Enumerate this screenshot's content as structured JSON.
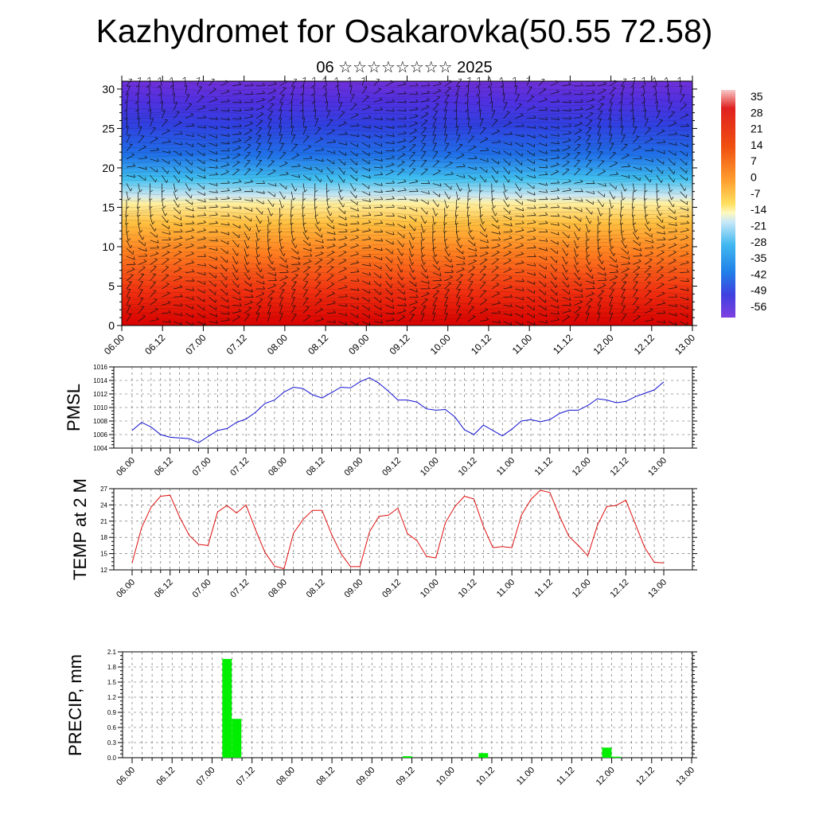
{
  "header": {
    "title": "Kazhydromet for Osakarovka(50.55 72.58)",
    "subtitle": "06 ☆☆☆☆☆☆☆☆ 2025"
  },
  "chart_data": [
    {
      "type": "heatmap",
      "title": "",
      "xlabel": "",
      "ylabel": "",
      "x_ticks": [
        "06.00",
        "06.12",
        "07.00",
        "07.12",
        "08.00",
        "08.12",
        "09.00",
        "09.12",
        "10.00",
        "10.12",
        "11.00",
        "11.12",
        "12.00",
        "12.12",
        "13.00"
      ],
      "y_ticks": [
        0,
        5,
        10,
        15,
        20,
        25,
        30
      ],
      "ylim": [
        0,
        31
      ],
      "colorbar_labels": [
        "35",
        "28",
        "21",
        "14",
        "7",
        "0",
        "-7",
        "-14",
        "-21",
        "-28",
        "-35",
        "-42",
        "-49",
        "-56"
      ],
      "overlay": "wind barbs / vector field",
      "colors": {
        "warm": "#e0141a",
        "mid": "#ffe060",
        "cold": "#6030e0"
      }
    },
    {
      "type": "line",
      "ylabel": "PMSL",
      "ylim": [
        1004,
        1016
      ],
      "y_ticks": [
        "1004",
        "1006",
        "1008",
        "1010",
        "1012",
        "1014",
        "1016"
      ],
      "x_ticks": [
        "06.00",
        "06.12",
        "07.00",
        "07.12",
        "08.00",
        "08.12",
        "09.00",
        "09.12",
        "10.00",
        "10.12",
        "11.00",
        "11.12",
        "12.00",
        "12.12",
        "13.00"
      ],
      "series": [
        {
          "color": "#1010d0",
          "values": [
            1006.6,
            1007.8,
            1007.1,
            1006.0,
            1005.6,
            1005.5,
            1005.4,
            1004.8,
            1005.7,
            1006.6,
            1006.9,
            1007.8,
            1008.3,
            1009.3,
            1010.6,
            1011.1,
            1012.3,
            1013.0,
            1012.8,
            1011.9,
            1011.4,
            1012.2,
            1013.0,
            1012.9,
            1013.8,
            1014.4,
            1013.6,
            1012.4,
            1011.1,
            1011.1,
            1010.8,
            1009.8,
            1009.6,
            1009.7,
            1008.6,
            1006.7,
            1006.0,
            1007.4,
            1006.6,
            1005.8,
            1006.8,
            1008.0,
            1008.2,
            1007.9,
            1008.2,
            1009.1,
            1009.6,
            1009.6,
            1010.3,
            1011.3,
            1011.1,
            1010.7,
            1010.9,
            1011.6,
            1012.1,
            1012.6,
            1013.8
          ]
        }
      ]
    },
    {
      "type": "line",
      "ylabel": "TEMP at 2 M",
      "ylim": [
        12,
        27
      ],
      "y_ticks": [
        "12",
        "15",
        "18",
        "21",
        "24",
        "27"
      ],
      "x_ticks": [
        "06.00",
        "06.12",
        "07.00",
        "07.12",
        "08.00",
        "08.12",
        "09.00",
        "09.12",
        "10.00",
        "10.12",
        "11.00",
        "11.12",
        "12.00",
        "12.12",
        "13.00"
      ],
      "series": [
        {
          "color": "#e01010",
          "values": [
            13.3,
            19.8,
            23.6,
            25.6,
            25.8,
            21.8,
            18.4,
            16.7,
            16.5,
            22.7,
            23.9,
            22.5,
            24.0,
            19.4,
            15.2,
            12.7,
            12.2,
            18.8,
            21.3,
            23.0,
            23.0,
            18.6,
            15.0,
            12.6,
            12.6,
            19.0,
            21.9,
            22.1,
            23.4,
            18.7,
            17.4,
            14.5,
            14.2,
            20.7,
            23.7,
            25.6,
            25.1,
            20.0,
            16.1,
            16.3,
            16.1,
            22.1,
            25.0,
            26.7,
            26.3,
            22.0,
            18.2,
            16.5,
            14.6,
            20.2,
            23.7,
            23.9,
            24.9,
            20.5,
            16.1,
            13.4,
            13.3
          ]
        }
      ]
    },
    {
      "type": "bar",
      "ylabel": "PRECIP, mm",
      "ylim": [
        0,
        2.1
      ],
      "y_ticks": [
        "0.0",
        "0.3",
        "0.6",
        "0.9",
        "1.2",
        "1.5",
        "1.8",
        "2.1"
      ],
      "x_ticks": [
        "06.00",
        "06.12",
        "07.00",
        "07.12",
        "08.00",
        "08.12",
        "09.00",
        "09.12",
        "10.00",
        "10.12",
        "11.00",
        "11.12",
        "12.00",
        "12.12",
        "13.00"
      ],
      "series": [
        {
          "color": "#00ee00",
          "values": [
            0,
            0,
            0,
            0,
            0,
            0,
            0,
            0,
            0,
            0,
            1.96,
            0.77,
            0,
            0,
            0,
            0,
            0,
            0,
            0,
            0,
            0,
            0,
            0,
            0,
            0,
            0,
            0,
            0,
            0,
            0.03,
            0,
            0,
            0,
            0,
            0,
            0,
            0,
            0.09,
            0,
            0,
            0,
            0,
            0,
            0,
            0,
            0,
            0,
            0,
            0,
            0,
            0.2,
            0.02,
            0,
            0,
            0,
            0,
            0
          ]
        }
      ]
    }
  ]
}
